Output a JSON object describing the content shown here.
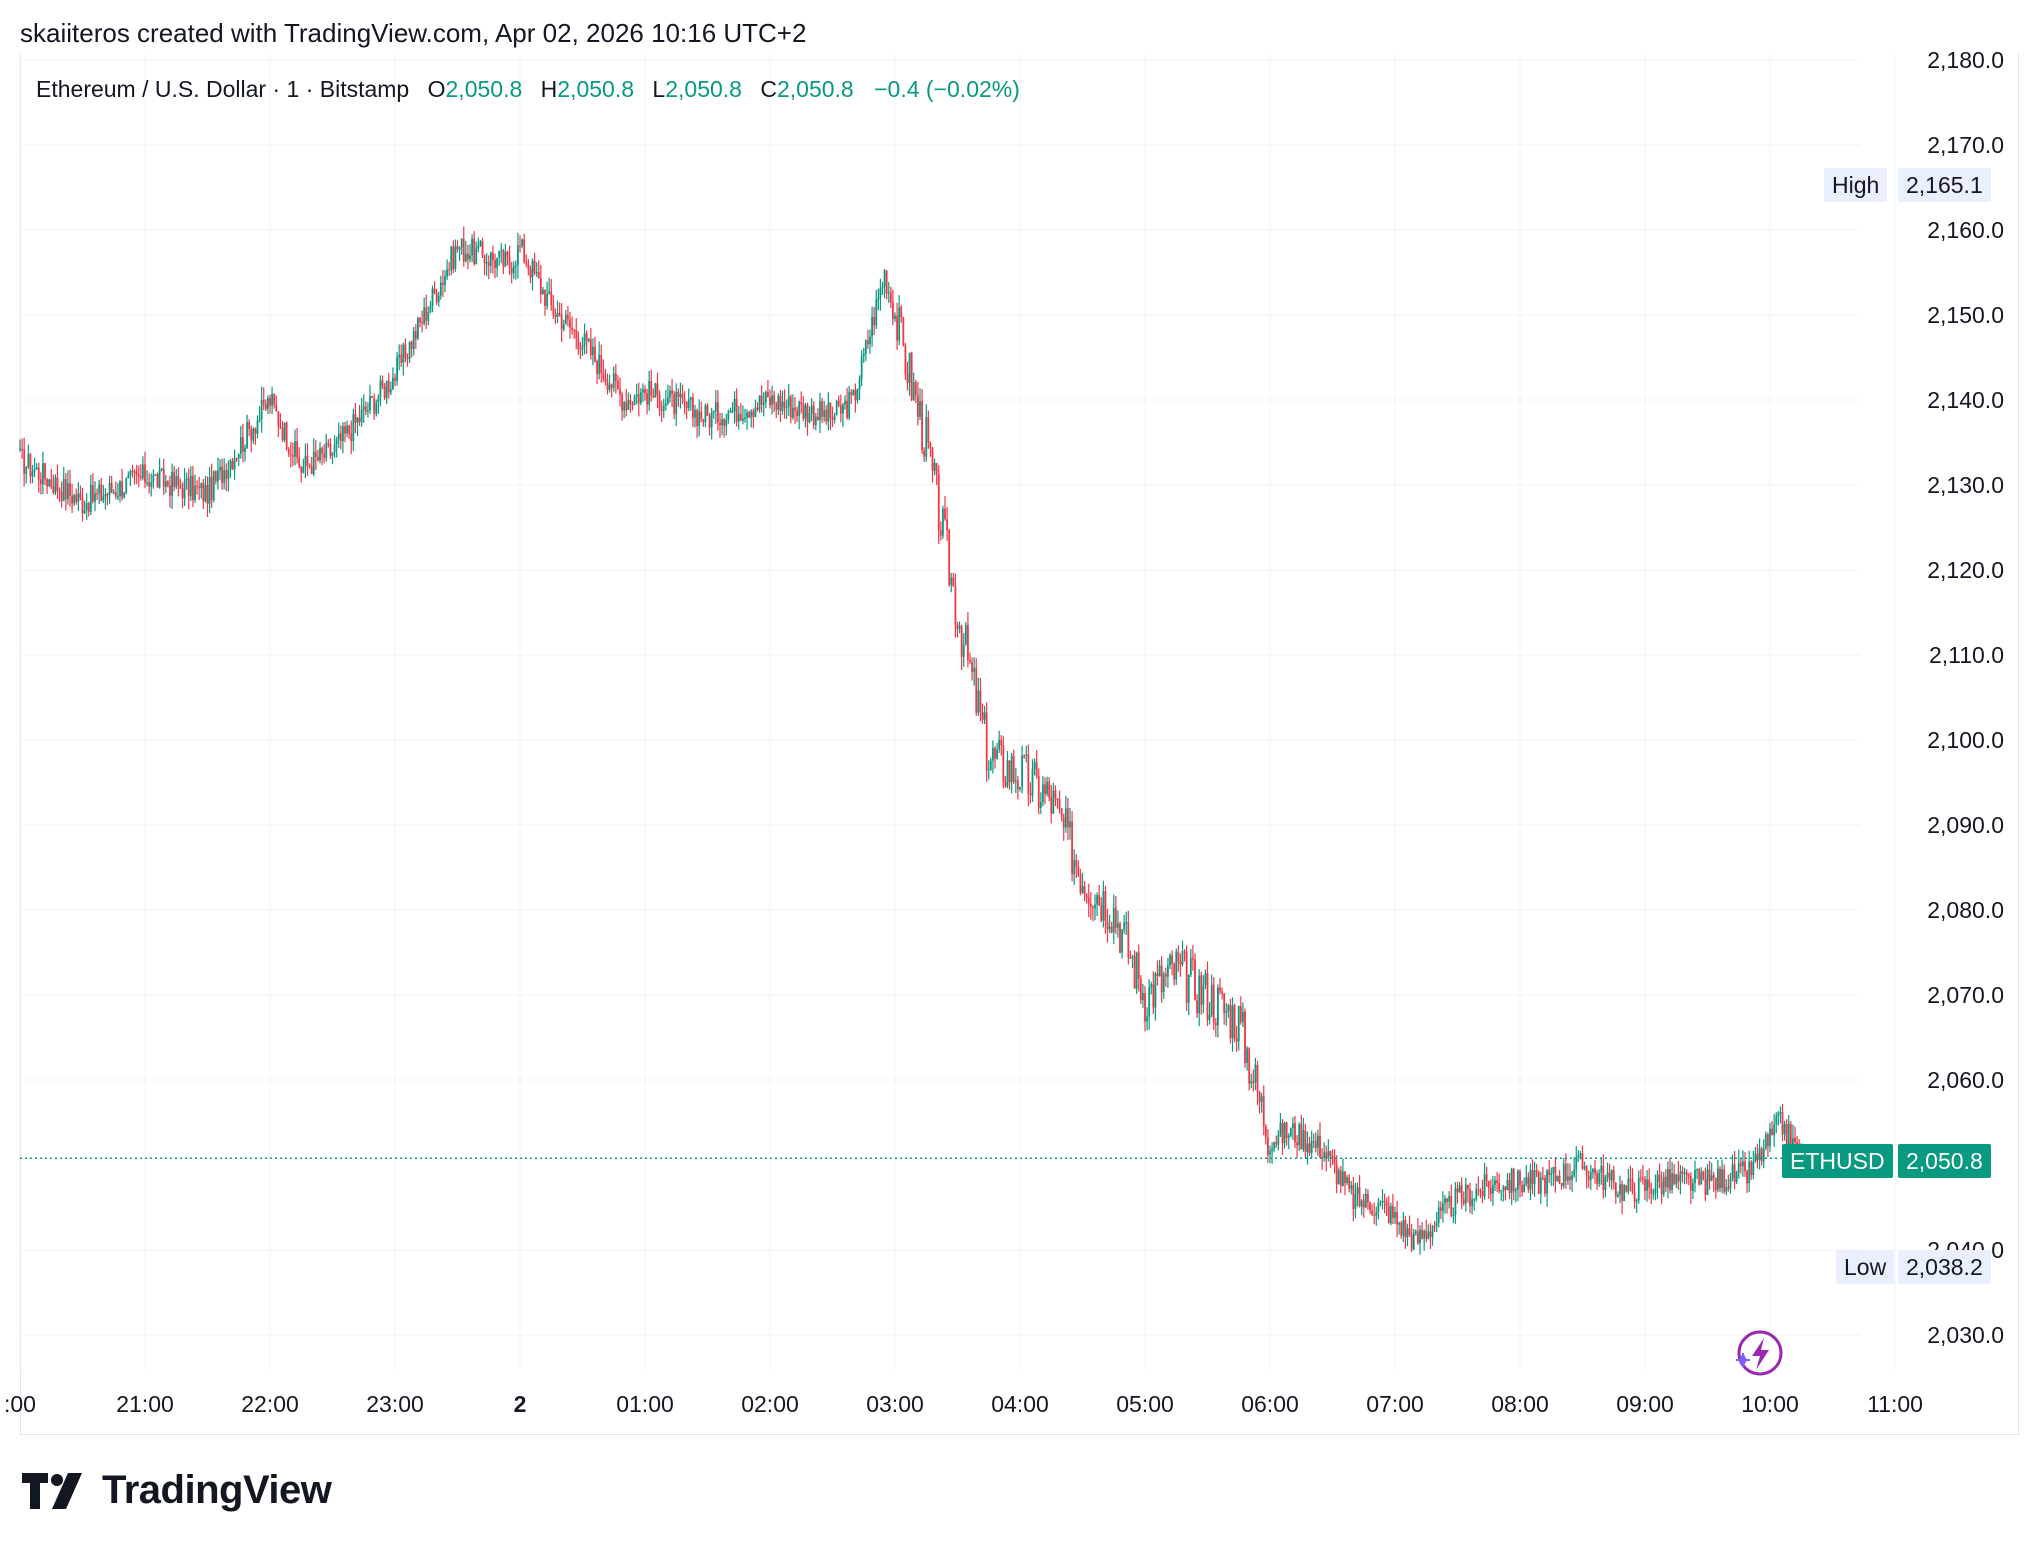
{
  "attribution": "skaiiteros created with TradingView.com, Apr 02, 2026 10:16 UTC+2",
  "legend": {
    "symbol": "Ethereum / U.S. Dollar · 1 · Bitstamp",
    "open_label": "O",
    "open": "2,050.8",
    "high_label": "H",
    "high": "2,050.8",
    "low_label": "L",
    "low": "2,050.8",
    "close_label": "C",
    "close": "2,050.8",
    "change": "−0.4 (−0.02%)"
  },
  "price_axis": {
    "ticks": [
      "2,180.0",
      "2,170.0",
      "2,160.0",
      "2,150.0",
      "2,140.0",
      "2,130.0",
      "2,120.0",
      "2,110.0",
      "2,100.0",
      "2,090.0",
      "2,080.0",
      "2,070.0",
      "2,060.0",
      "2,040.0",
      "2,030.0"
    ],
    "high_label": "High",
    "high_value": "2,165.1",
    "low_label": "Low",
    "low_value": "2,038.2",
    "last_label": "ETHUSD",
    "last_value": "2,050.8"
  },
  "time_axis": {
    "ticks": [
      ":00",
      "21:00",
      "22:00",
      "23:00",
      "2",
      "01:00",
      "02:00",
      "03:00",
      "04:00",
      "05:00",
      "06:00",
      "07:00",
      "08:00",
      "09:00",
      "10:00",
      "11:00"
    ]
  },
  "brand": "TradingView",
  "colors": {
    "up": "#089981",
    "down": "#f23645",
    "grid": "#f0f3fa",
    "accent": "#089981"
  },
  "chart_data": {
    "type": "line",
    "title": "",
    "xlabel": "",
    "ylabel": "",
    "ylim": [
      2026,
      2181
    ],
    "grid": true,
    "legend_position": "top-left",
    "x": [
      "20:00",
      "20:30",
      "21:00",
      "21:30",
      "22:00",
      "22:15",
      "22:30",
      "23:00",
      "23:30",
      "23:55",
      "00:00",
      "00:15",
      "00:30",
      "00:50",
      "01:00",
      "01:30",
      "02:00",
      "02:30",
      "02:40",
      "02:55",
      "03:05",
      "03:15",
      "03:30",
      "03:45",
      "04:00",
      "04:15",
      "04:30",
      "04:45",
      "05:00",
      "05:15",
      "05:30",
      "05:45",
      "06:00",
      "06:10",
      "06:25",
      "06:40",
      "06:55",
      "07:10",
      "07:30",
      "07:50",
      "08:10",
      "08:30",
      "08:50",
      "09:10",
      "09:30",
      "09:50",
      "10:05",
      "10:15"
    ],
    "series": [
      {
        "values": [
          2133,
          2128,
          2131,
          2129,
          2140,
          2132,
          2134,
          2143,
          2158,
          2156,
          2158,
          2151,
          2147,
          2140,
          2141,
          2138,
          2140,
          2138,
          2140,
          2155,
          2145,
          2135,
          2115,
          2098,
          2096,
          2093,
          2084,
          2080,
          2070,
          2073,
          2070,
          2067,
          2053,
          2054,
          2052,
          2046,
          2045,
          2041,
          2046,
          2048,
          2048,
          2050,
          2047,
          2048,
          2048,
          2049,
          2055,
          2050.8
        ]
      }
    ]
  }
}
